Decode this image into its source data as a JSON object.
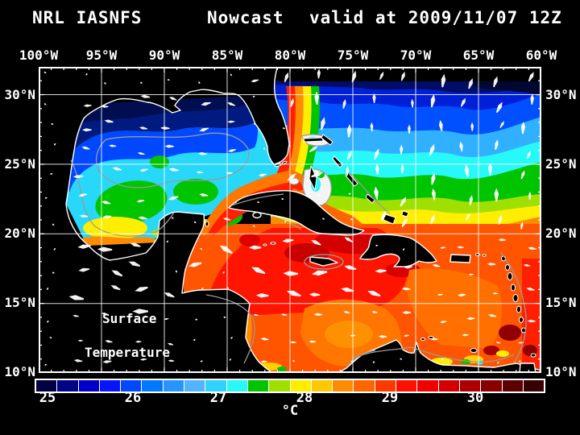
{
  "title": {
    "model": "NRL IASNFS",
    "product": "Nowcast",
    "valid": "valid at 2009/11/07 12Z"
  },
  "axes": {
    "longitude": [
      "100°W",
      "95°W",
      "90°W",
      "85°W",
      "80°W",
      "75°W",
      "70°W",
      "65°W",
      "60°W"
    ],
    "latitude": [
      "30°N",
      "25°N",
      "20°N",
      "15°N",
      "10°N"
    ]
  },
  "annotation": {
    "line1": "Surface",
    "line2": "Temperature"
  },
  "colorbar": {
    "ticks": [
      "25",
      "26",
      "27",
      "28",
      "29",
      "30"
    ],
    "unit": "°C",
    "cell_colors": [
      "#000042",
      "#000486",
      "#0000c8",
      "#0814ff",
      "#0048ff",
      "#0078ff",
      "#2894ff",
      "#50b4ff",
      "#30d0ff",
      "#28f8f8",
      "#00c400",
      "#a0e000",
      "#ffee00",
      "#ffc800",
      "#ff8c00",
      "#ff6600",
      "#ff3800",
      "#ff1000",
      "#f00000",
      "#d40000",
      "#ac0000",
      "#880000",
      "#5c0000",
      "#380000"
    ]
  },
  "colors": {
    "background": "#000000",
    "text": "#ffffff",
    "grid": "#ffffff",
    "coastline": "#ffffff",
    "contour": "#9a9a9a",
    "vector": "#ffffff"
  }
}
